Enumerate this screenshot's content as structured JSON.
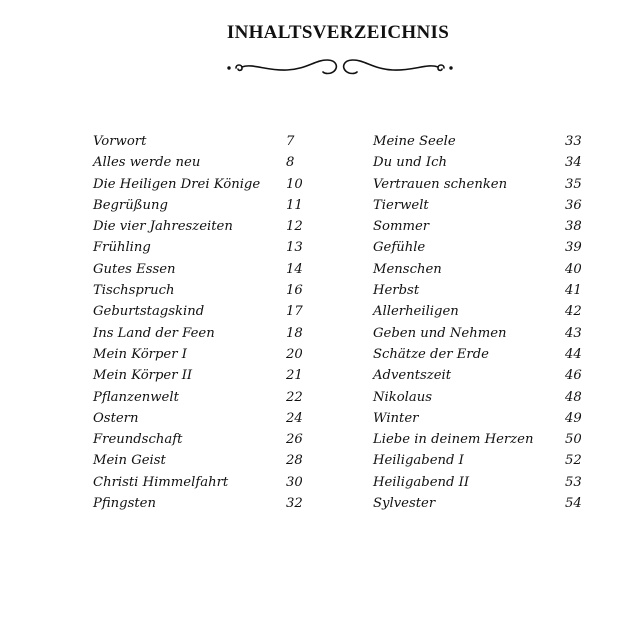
{
  "title": "INHALTSVERZEICHNIS",
  "ornament_icon": "flourish-divider",
  "left": [
    {
      "t": "Vorwort",
      "n": "7"
    },
    {
      "t": "Alles werde neu",
      "n": "8"
    },
    {
      "t": "Die Heiligen Drei Könige",
      "n": "10"
    },
    {
      "t": "Begrüßung",
      "n": "11"
    },
    {
      "t": "Die vier Jahreszeiten",
      "n": "12"
    },
    {
      "t": "Frühling",
      "n": "13"
    },
    {
      "t": "Gutes Essen",
      "n": "14"
    },
    {
      "t": "Tischspruch",
      "n": "16"
    },
    {
      "t": "Geburtstagskind",
      "n": "17"
    },
    {
      "t": "Ins Land der Feen",
      "n": "18"
    },
    {
      "t": "Mein Körper I",
      "n": "20"
    },
    {
      "t": "Mein Körper II",
      "n": "21"
    },
    {
      "t": "Pflanzenwelt",
      "n": "22"
    },
    {
      "t": "Ostern",
      "n": "24"
    },
    {
      "t": "Freundschaft",
      "n": "26"
    },
    {
      "t": "Mein Geist",
      "n": "28"
    },
    {
      "t": "Christi Himmelfahrt",
      "n": "30"
    },
    {
      "t": "Pfingsten",
      "n": "32"
    }
  ],
  "right": [
    {
      "t": "Meine Seele",
      "n": "33"
    },
    {
      "t": "Du und Ich",
      "n": "34"
    },
    {
      "t": "Vertrauen schenken",
      "n": "35"
    },
    {
      "t": "Tierwelt",
      "n": "36"
    },
    {
      "t": "Sommer",
      "n": "38"
    },
    {
      "t": "Gefühle",
      "n": "39"
    },
    {
      "t": "Menschen",
      "n": "40"
    },
    {
      "t": "Herbst",
      "n": "41"
    },
    {
      "t": "Allerheiligen",
      "n": "42"
    },
    {
      "t": "Geben und Nehmen",
      "n": "43"
    },
    {
      "t": "Schätze der Erde",
      "n": "44"
    },
    {
      "t": "Adventszeit",
      "n": "46"
    },
    {
      "t": "Nikolaus",
      "n": "48"
    },
    {
      "t": "Winter",
      "n": "49"
    },
    {
      "t": "Liebe in deinem Herzen",
      "n": "50"
    },
    {
      "t": "Heiligabend I",
      "n": "52"
    },
    {
      "t": "Heiligabend II",
      "n": "53"
    },
    {
      "t": "Sylvester",
      "n": "54"
    }
  ]
}
